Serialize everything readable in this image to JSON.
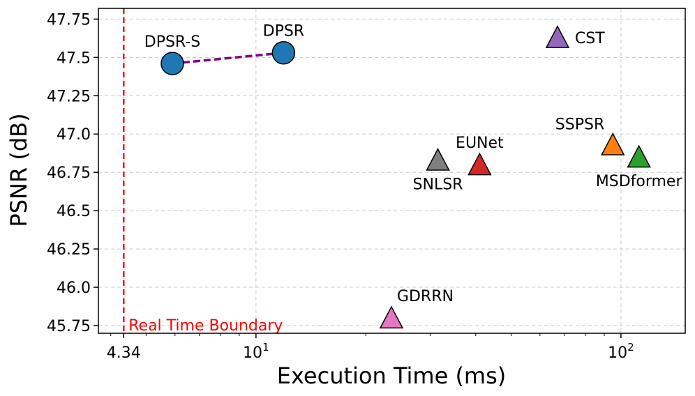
{
  "chart_data": {
    "type": "scatter",
    "xscale": "log",
    "xlabel": "Execution Time (ms)",
    "ylabel": "PSNR (dB)",
    "xlim": [
      3.7,
      150
    ],
    "ylim": [
      45.7,
      47.82
    ],
    "grid": true,
    "x_ticks": [
      {
        "value": 4.34,
        "label": "4.34",
        "highlight": true
      },
      {
        "value": 10,
        "label": "10",
        "sup": "1"
      },
      {
        "value": 100,
        "label": "10",
        "sup": "2"
      }
    ],
    "y_ticks": [
      {
        "value": 45.75,
        "label": "45.75"
      },
      {
        "value": 46.0,
        "label": "46.0"
      },
      {
        "value": 46.25,
        "label": "46.25"
      },
      {
        "value": 46.5,
        "label": "46.5"
      },
      {
        "value": 46.75,
        "label": "46.75"
      },
      {
        "value": 47.0,
        "label": "47.0"
      },
      {
        "value": 47.25,
        "label": "47.25"
      },
      {
        "value": 47.5,
        "label": "47.5"
      },
      {
        "value": 47.75,
        "label": "47.75"
      }
    ],
    "boundary": {
      "x": 4.34,
      "label": "Real Time Boundary",
      "color": "#ff0000"
    },
    "connector": {
      "from": "DPSR-S",
      "to": "DPSR",
      "color": "#800080"
    },
    "points": [
      {
        "name": "DPSR-S",
        "x": 5.9,
        "y": 47.46,
        "marker": "circle",
        "color": "#1f77b4",
        "label_pos": "above"
      },
      {
        "name": "DPSR",
        "x": 11.9,
        "y": 47.53,
        "marker": "circle",
        "color": "#1f77b4",
        "label_pos": "above"
      },
      {
        "name": "CST",
        "x": 67,
        "y": 47.63,
        "marker": "triangle",
        "color": "#9467bd",
        "label_pos": "right"
      },
      {
        "name": "SSPSR",
        "x": 95,
        "y": 46.93,
        "marker": "triangle",
        "color": "#ff7f0e",
        "label_pos": "above-left"
      },
      {
        "name": "MSDformer",
        "x": 112,
        "y": 46.85,
        "marker": "triangle",
        "color": "#2ca02c",
        "label_pos": "below"
      },
      {
        "name": "EUNet",
        "x": 41,
        "y": 46.8,
        "marker": "triangle",
        "color": "#d62728",
        "label_pos": "above"
      },
      {
        "name": "SNLSR",
        "x": 31.5,
        "y": 46.83,
        "marker": "triangle",
        "color": "#7f7f7f",
        "label_pos": "below"
      },
      {
        "name": "GDRRN",
        "x": 23.5,
        "y": 45.8,
        "marker": "triangle",
        "color": "#e377c2",
        "label_pos": "above-right"
      }
    ]
  }
}
